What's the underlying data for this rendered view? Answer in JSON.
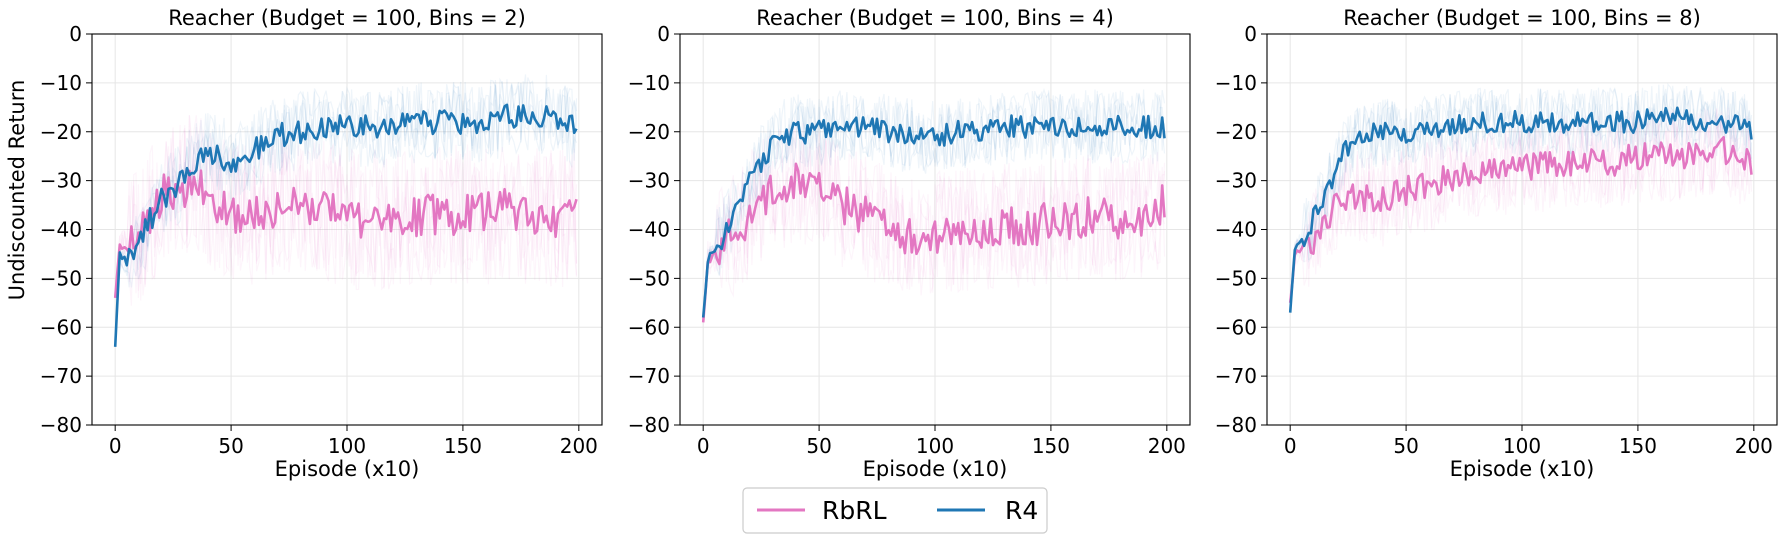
{
  "colors": {
    "rbrl": "#e377c2",
    "r4": "#1f77b4"
  },
  "legend": {
    "items": [
      {
        "label": "RbRL",
        "color": "#e377c2"
      },
      {
        "label": "R4",
        "color": "#1f77b4"
      }
    ]
  },
  "shared_ylabel": "Undiscounted Return",
  "chart_data": [
    {
      "type": "line",
      "title": "Reacher (Budget = 100, Bins = 2)",
      "xlabel": "Episode (x10)",
      "ylabel": "Undiscounted Return",
      "xlim": [
        -10,
        210
      ],
      "ylim": [
        -80,
        0
      ],
      "xticks": [
        0,
        50,
        100,
        150,
        200
      ],
      "yticks": [
        0,
        -10,
        -20,
        -30,
        -40,
        -50,
        -60,
        -70,
        -80
      ],
      "grid": true,
      "keyframes": {
        "RbRL": [
          [
            0,
            -54
          ],
          [
            2,
            -44
          ],
          [
            5,
            -44
          ],
          [
            10,
            -42
          ],
          [
            15,
            -38
          ],
          [
            20,
            -33
          ],
          [
            25,
            -33
          ],
          [
            30,
            -31
          ],
          [
            35,
            -30
          ],
          [
            40,
            -33
          ],
          [
            45,
            -35
          ],
          [
            50,
            -37
          ],
          [
            60,
            -37
          ],
          [
            70,
            -35
          ],
          [
            80,
            -34
          ],
          [
            90,
            -36
          ],
          [
            100,
            -38
          ],
          [
            110,
            -38
          ],
          [
            120,
            -38
          ],
          [
            130,
            -37
          ],
          [
            140,
            -37
          ],
          [
            150,
            -37
          ],
          [
            160,
            -37
          ],
          [
            170,
            -36
          ],
          [
            180,
            -37
          ],
          [
            190,
            -38
          ],
          [
            200,
            -37
          ]
        ],
        "R4": [
          [
            0,
            -64
          ],
          [
            2,
            -45
          ],
          [
            5,
            -47
          ],
          [
            10,
            -44
          ],
          [
            15,
            -38
          ],
          [
            20,
            -34
          ],
          [
            25,
            -32
          ],
          [
            30,
            -29
          ],
          [
            35,
            -26
          ],
          [
            40,
            -24
          ],
          [
            50,
            -26
          ],
          [
            60,
            -24
          ],
          [
            70,
            -21
          ],
          [
            80,
            -20
          ],
          [
            90,
            -19
          ],
          [
            100,
            -19
          ],
          [
            110,
            -19
          ],
          [
            120,
            -19
          ],
          [
            130,
            -18
          ],
          [
            140,
            -18
          ],
          [
            150,
            -18
          ],
          [
            160,
            -18
          ],
          [
            170,
            -17
          ],
          [
            180,
            -16
          ],
          [
            190,
            -17
          ],
          [
            200,
            -20
          ]
        ]
      },
      "noise": {
        "RbRL": 4.5,
        "R4": 2.6
      }
    },
    {
      "type": "line",
      "title": "Reacher (Budget = 100, Bins = 4)",
      "xlabel": "Episode (x10)",
      "xlim": [
        -10,
        210
      ],
      "ylim": [
        -80,
        0
      ],
      "xticks": [
        0,
        50,
        100,
        150,
        200
      ],
      "yticks": [
        0,
        -10,
        -20,
        -30,
        -40,
        -50,
        -60,
        -70,
        -80
      ],
      "grid": true,
      "keyframes": {
        "RbRL": [
          [
            0,
            -59
          ],
          [
            2,
            -46
          ],
          [
            5,
            -45
          ],
          [
            10,
            -42
          ],
          [
            15,
            -40
          ],
          [
            20,
            -37
          ],
          [
            25,
            -34
          ],
          [
            30,
            -32
          ],
          [
            40,
            -30
          ],
          [
            50,
            -32
          ],
          [
            60,
            -35
          ],
          [
            70,
            -37
          ],
          [
            80,
            -40
          ],
          [
            90,
            -42
          ],
          [
            100,
            -41
          ],
          [
            110,
            -40
          ],
          [
            120,
            -40
          ],
          [
            130,
            -39
          ],
          [
            140,
            -40
          ],
          [
            150,
            -38
          ],
          [
            160,
            -38
          ],
          [
            170,
            -37
          ],
          [
            180,
            -38
          ],
          [
            190,
            -38
          ],
          [
            200,
            -34
          ]
        ],
        "R4": [
          [
            0,
            -58
          ],
          [
            2,
            -46
          ],
          [
            5,
            -44
          ],
          [
            10,
            -40
          ],
          [
            15,
            -35
          ],
          [
            20,
            -30
          ],
          [
            25,
            -26
          ],
          [
            30,
            -23
          ],
          [
            35,
            -21
          ],
          [
            40,
            -20
          ],
          [
            50,
            -20
          ],
          [
            60,
            -19
          ],
          [
            70,
            -19
          ],
          [
            80,
            -20
          ],
          [
            90,
            -21
          ],
          [
            100,
            -21
          ],
          [
            110,
            -20
          ],
          [
            120,
            -20
          ],
          [
            130,
            -19
          ],
          [
            140,
            -19
          ],
          [
            150,
            -19
          ],
          [
            160,
            -19
          ],
          [
            170,
            -19
          ],
          [
            180,
            -19
          ],
          [
            190,
            -19
          ],
          [
            200,
            -19
          ]
        ]
      },
      "noise": {
        "RbRL": 4.0,
        "R4": 2.4
      }
    },
    {
      "type": "line",
      "title": "Reacher (Budget = 100, Bins = 8)",
      "xlabel": "Episode (x10)",
      "xlim": [
        -10,
        210
      ],
      "ylim": [
        -80,
        0
      ],
      "xticks": [
        0,
        50,
        100,
        150,
        200
      ],
      "yticks": [
        0,
        -10,
        -20,
        -30,
        -40,
        -50,
        -60,
        -70,
        -80
      ],
      "grid": true,
      "keyframes": {
        "RbRL": [
          [
            0,
            -55
          ],
          [
            2,
            -45
          ],
          [
            5,
            -44
          ],
          [
            10,
            -42
          ],
          [
            15,
            -38
          ],
          [
            20,
            -35
          ],
          [
            30,
            -33
          ],
          [
            40,
            -34
          ],
          [
            50,
            -32
          ],
          [
            60,
            -31
          ],
          [
            70,
            -29
          ],
          [
            80,
            -28
          ],
          [
            90,
            -28
          ],
          [
            100,
            -27
          ],
          [
            110,
            -27
          ],
          [
            120,
            -26
          ],
          [
            130,
            -26
          ],
          [
            140,
            -26
          ],
          [
            150,
            -25
          ],
          [
            160,
            -25
          ],
          [
            170,
            -25
          ],
          [
            180,
            -24
          ],
          [
            190,
            -24
          ],
          [
            200,
            -27
          ]
        ],
        "R4": [
          [
            0,
            -57
          ],
          [
            2,
            -44
          ],
          [
            5,
            -42
          ],
          [
            10,
            -38
          ],
          [
            15,
            -33
          ],
          [
            20,
            -27
          ],
          [
            25,
            -23
          ],
          [
            30,
            -21
          ],
          [
            40,
            -20
          ],
          [
            50,
            -20
          ],
          [
            60,
            -19
          ],
          [
            70,
            -19
          ],
          [
            80,
            -18
          ],
          [
            90,
            -18
          ],
          [
            100,
            -18
          ],
          [
            110,
            -18
          ],
          [
            120,
            -18
          ],
          [
            130,
            -18
          ],
          [
            140,
            -18
          ],
          [
            150,
            -18
          ],
          [
            160,
            -17
          ],
          [
            170,
            -17
          ],
          [
            180,
            -18
          ],
          [
            190,
            -18
          ],
          [
            200,
            -20
          ]
        ]
      },
      "noise": {
        "RbRL": 3.0,
        "R4": 2.2
      }
    }
  ]
}
